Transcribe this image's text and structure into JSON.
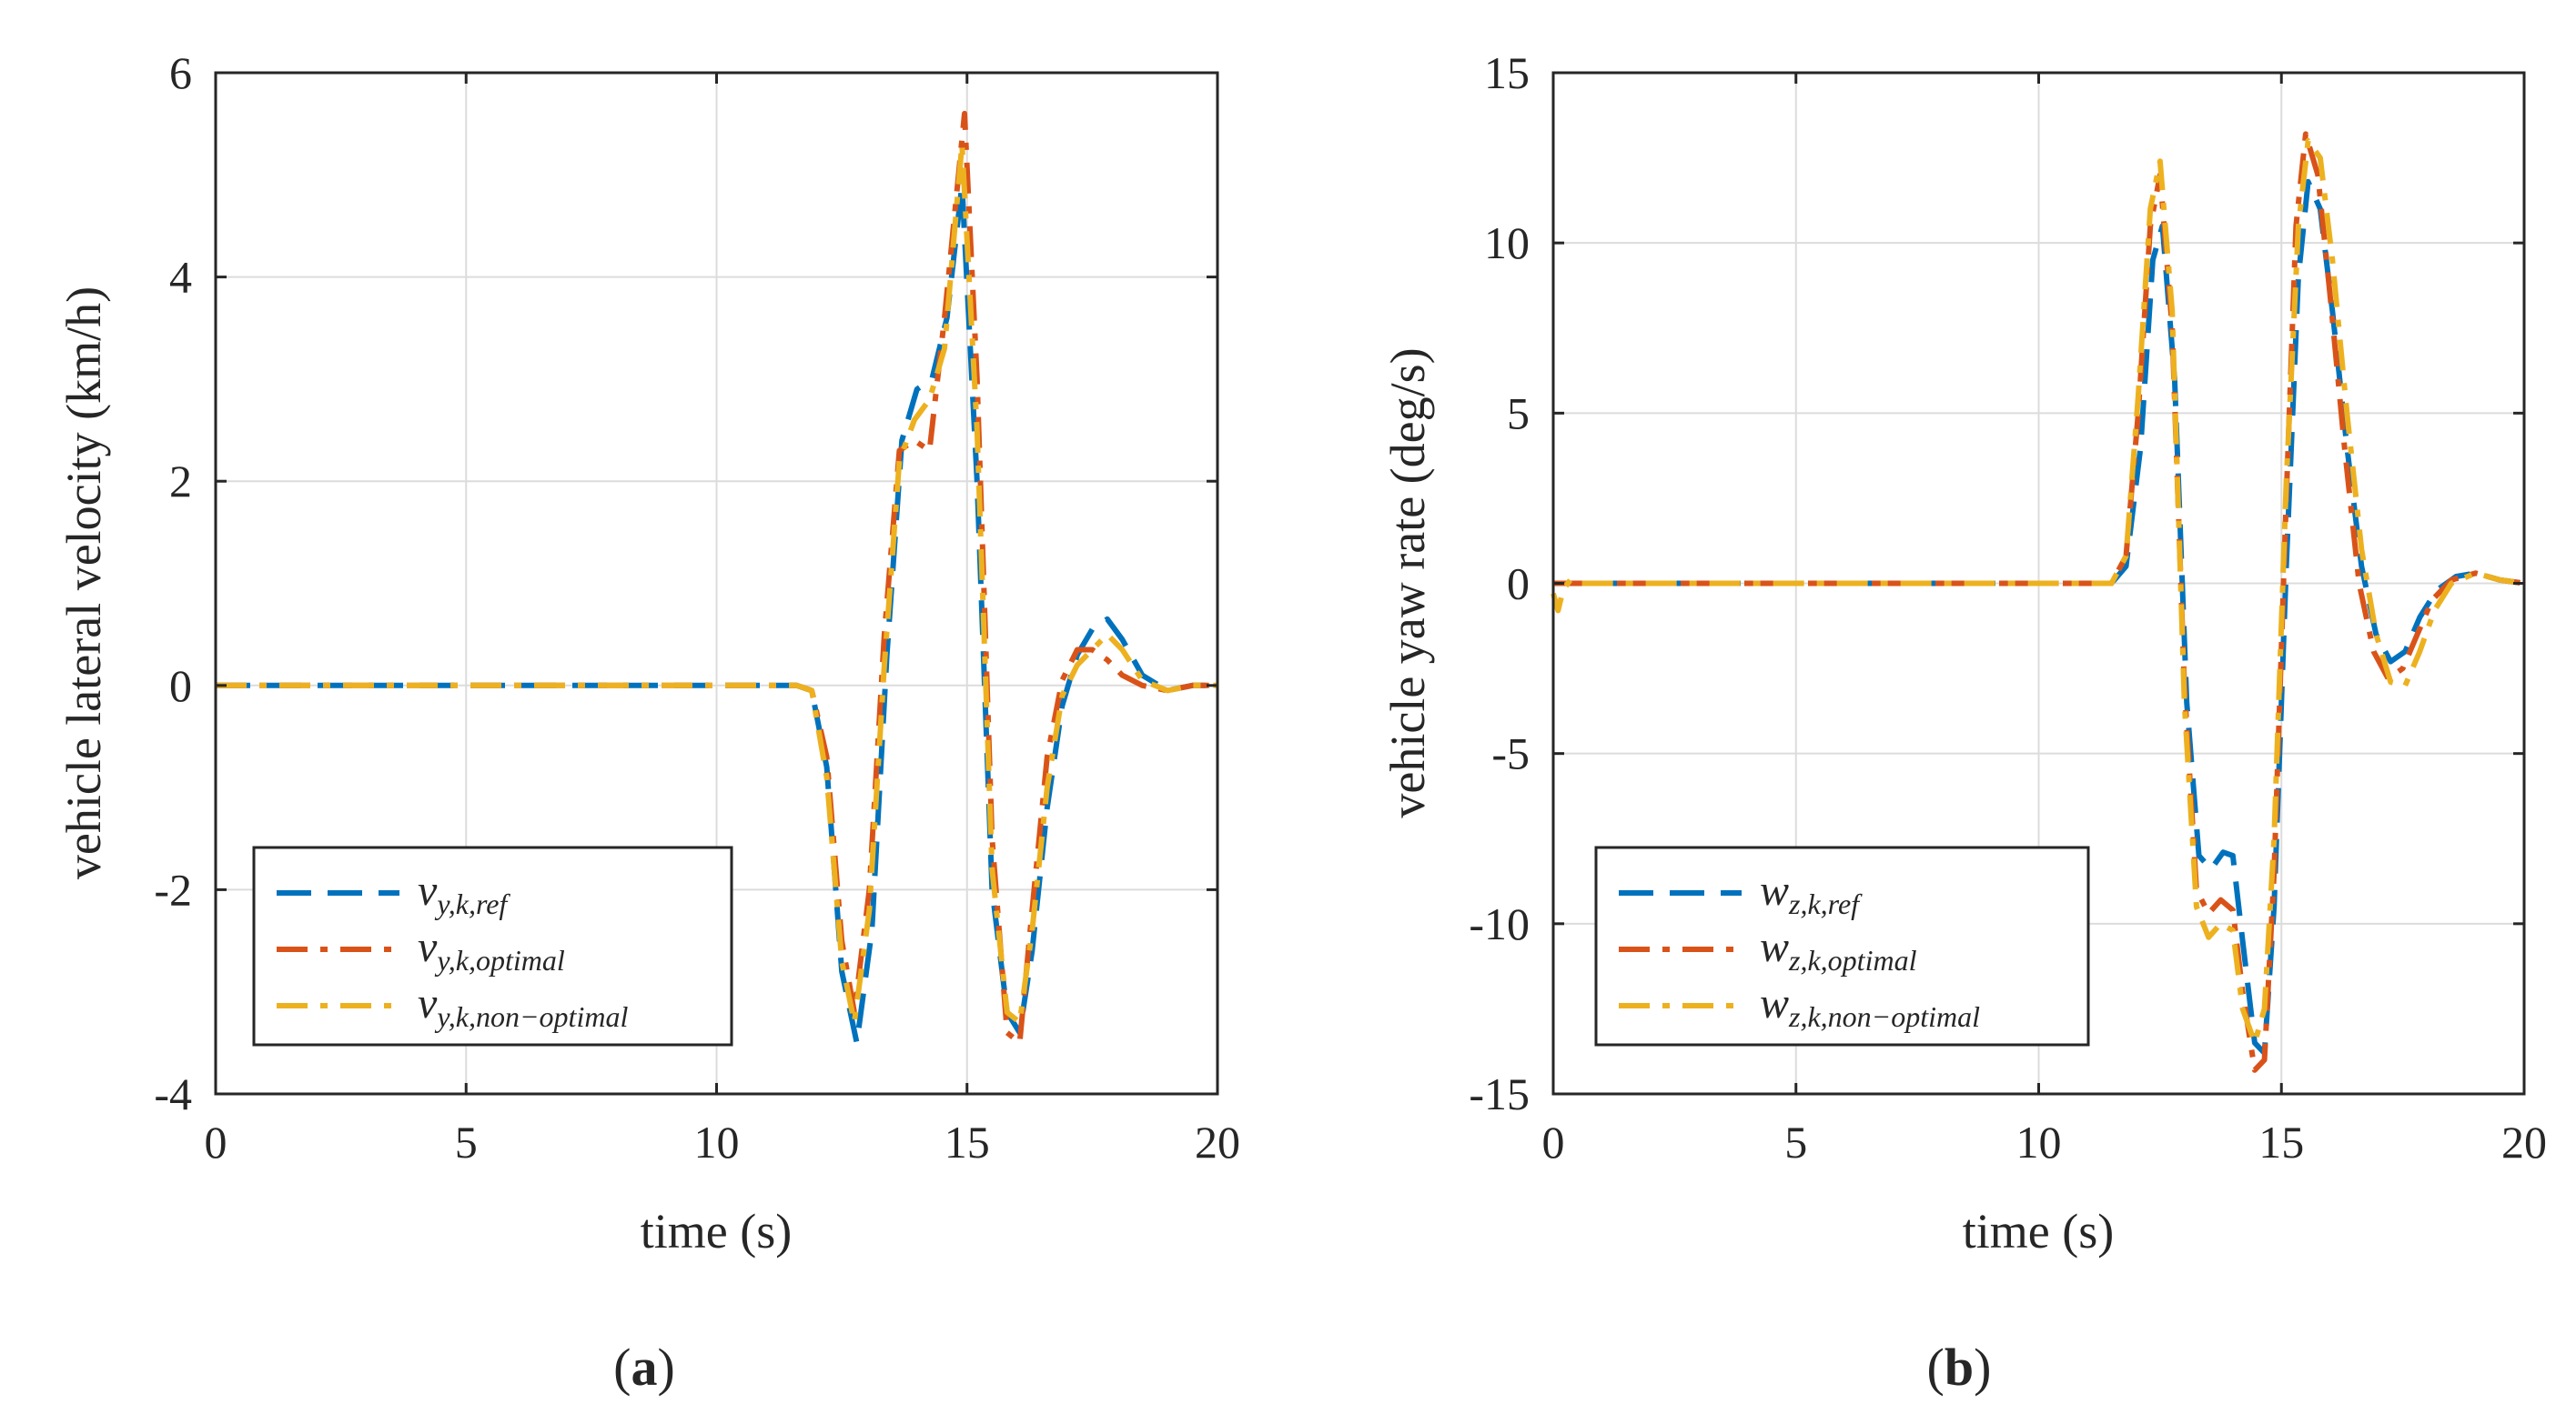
{
  "chart_data": [
    {
      "type": "line",
      "panel": "(a)",
      "panel_letter": "a",
      "xlabel": "time (s)",
      "ylabel": "vehicle lateral velocity (km/h)",
      "xlim": [
        0,
        20
      ],
      "ylim": [
        -4,
        6
      ],
      "xticks": [
        0,
        5,
        10,
        15,
        20
      ],
      "yticks": [
        -4,
        -2,
        0,
        2,
        4,
        6
      ],
      "grid": true,
      "legend_position": "bottom-left",
      "series": [
        {
          "name": "v_{y,k,ref}",
          "label_base": "v",
          "label_sub": "y,k,ref",
          "color": "#0072BD",
          "style": "dashed",
          "x": [
            0,
            11.6,
            11.9,
            12.2,
            12.5,
            12.8,
            13.1,
            13.4,
            13.7,
            14.0,
            14.3,
            14.6,
            14.9,
            15.2,
            15.5,
            15.8,
            16.05,
            16.3,
            16.6,
            16.9,
            17.2,
            17.5,
            17.8,
            18.1,
            18.5,
            19.0,
            19.5,
            20
          ],
          "y": [
            0,
            0,
            -0.05,
            -0.8,
            -2.8,
            -3.5,
            -2.4,
            0.3,
            2.4,
            2.9,
            3.0,
            3.6,
            4.9,
            2.0,
            -2.0,
            -3.2,
            -3.4,
            -2.6,
            -1.2,
            -0.2,
            0.3,
            0.55,
            0.65,
            0.45,
            0.1,
            -0.05,
            0,
            0
          ]
        },
        {
          "name": "v_{y,k,optimal}",
          "label_base": "v",
          "label_sub": "y,k,optimal",
          "color": "#D95319",
          "style": "dashdot",
          "x": [
            0,
            11.6,
            11.9,
            12.2,
            12.5,
            12.75,
            13.05,
            13.35,
            13.65,
            13.95,
            14.25,
            14.55,
            14.95,
            15.2,
            15.5,
            15.8,
            16.05,
            16.3,
            16.6,
            16.9,
            17.2,
            17.5,
            17.8,
            18.1,
            18.5,
            19.0,
            19.5,
            20
          ],
          "y": [
            0,
            0,
            -0.05,
            -0.7,
            -2.5,
            -3.2,
            -2.0,
            0.5,
            2.3,
            2.4,
            2.3,
            3.6,
            5.6,
            3.0,
            -1.5,
            -3.4,
            -3.5,
            -2.2,
            -0.7,
            0.05,
            0.35,
            0.35,
            0.25,
            0.1,
            0,
            -0.05,
            0,
            0
          ]
        },
        {
          "name": "v_{y,k,non-optimal}",
          "label_base": "v",
          "label_sub": "y,k,non−optimal",
          "color": "#EDB120",
          "style": "dashdot",
          "x": [
            0,
            11.6,
            11.9,
            12.2,
            12.5,
            12.75,
            13.05,
            13.35,
            13.65,
            13.95,
            14.25,
            14.55,
            14.9,
            15.2,
            15.5,
            15.8,
            16.05,
            16.3,
            16.6,
            16.9,
            17.2,
            17.5,
            17.8,
            18.1,
            18.5,
            19.0,
            19.5,
            20
          ],
          "y": [
            0,
            0,
            -0.05,
            -0.9,
            -2.7,
            -3.3,
            -2.2,
            0.2,
            2.2,
            2.6,
            2.8,
            3.3,
            5.3,
            2.5,
            -1.8,
            -3.2,
            -3.3,
            -2.4,
            -1.0,
            -0.1,
            0.2,
            0.35,
            0.5,
            0.35,
            0.05,
            -0.05,
            0,
            0
          ]
        }
      ]
    },
    {
      "type": "line",
      "panel": "(b)",
      "panel_letter": "b",
      "xlabel": "time (s)",
      "ylabel": "vehicle yaw rate (deg/s)",
      "xlim": [
        0,
        20
      ],
      "ylim": [
        -15,
        15
      ],
      "xticks": [
        0,
        5,
        10,
        15,
        20
      ],
      "yticks": [
        -15,
        -10,
        -5,
        0,
        5,
        10,
        15
      ],
      "grid": true,
      "legend_position": "bottom-left",
      "series": [
        {
          "name": "w_{z,k,ref}",
          "label_base": "w",
          "label_sub": "z,k,ref",
          "color": "#0072BD",
          "style": "dashed",
          "x": [
            0,
            11.5,
            11.8,
            12.1,
            12.35,
            12.55,
            12.8,
            13.05,
            13.3,
            13.55,
            13.8,
            14.0,
            14.2,
            14.45,
            14.65,
            14.85,
            15.1,
            15.35,
            15.55,
            15.8,
            16.05,
            16.35,
            16.65,
            16.95,
            17.25,
            17.55,
            17.85,
            18.2,
            18.6,
            19.0,
            19.5,
            20
          ],
          "y": [
            0,
            0,
            0.5,
            4.0,
            9.5,
            10.5,
            6.0,
            -3.5,
            -8.0,
            -8.4,
            -7.9,
            -8.0,
            -10.5,
            -13.5,
            -13.8,
            -9.5,
            0.5,
            9.0,
            11.8,
            11.0,
            8.0,
            4.0,
            0.5,
            -1.5,
            -2.3,
            -2.0,
            -1.0,
            -0.2,
            0.2,
            0.3,
            0.1,
            0
          ]
        },
        {
          "name": "w_{z,k,optimal}",
          "label_base": "w",
          "label_sub": "z,k,optimal",
          "color": "#D95319",
          "style": "dashdot",
          "x": [
            0,
            11.5,
            11.8,
            12.05,
            12.3,
            12.5,
            12.75,
            13.0,
            13.25,
            13.5,
            13.75,
            14.0,
            14.2,
            14.45,
            14.65,
            14.85,
            15.1,
            15.3,
            15.5,
            15.75,
            16.0,
            16.3,
            16.6,
            16.9,
            17.2,
            17.5,
            17.8,
            18.1,
            18.5,
            19.0,
            19.5,
            20
          ],
          "y": [
            0,
            0,
            0.8,
            5.0,
            10.5,
            12.0,
            7.5,
            -3.0,
            -9.0,
            -9.7,
            -9.3,
            -9.6,
            -12.0,
            -14.3,
            -14.0,
            -8.5,
            2.5,
            10.5,
            13.2,
            12.0,
            8.5,
            4.0,
            0.0,
            -2.0,
            -2.8,
            -2.5,
            -1.5,
            -0.5,
            0.1,
            0.3,
            0.1,
            0
          ]
        },
        {
          "name": "w_{z,k,non-optimal}",
          "label_base": "w",
          "label_sub": "z,k,non−optimal",
          "color": "#EDB120",
          "style": "dashdot",
          "x": [
            0,
            0.1,
            0.2,
            0.35,
            0.5,
            11.5,
            11.8,
            12.05,
            12.3,
            12.5,
            12.75,
            13.0,
            13.25,
            13.5,
            13.75,
            14.0,
            14.2,
            14.45,
            14.65,
            14.85,
            15.1,
            15.35,
            15.55,
            15.8,
            16.05,
            16.35,
            16.65,
            16.95,
            17.25,
            17.55,
            17.85,
            18.15,
            18.5,
            19.0,
            19.5,
            20
          ],
          "y": [
            -0.3,
            -0.8,
            -0.2,
            0.1,
            0,
            0,
            0.8,
            5.5,
            11.0,
            12.4,
            8.0,
            -3.5,
            -9.5,
            -10.4,
            -10.0,
            -10.2,
            -12.5,
            -13.5,
            -12.5,
            -7.5,
            3.0,
            10.5,
            13.0,
            12.5,
            9.5,
            5.0,
            1.0,
            -1.5,
            -2.9,
            -3.0,
            -2.0,
            -0.8,
            0,
            0.3,
            0.1,
            0
          ]
        }
      ]
    }
  ]
}
